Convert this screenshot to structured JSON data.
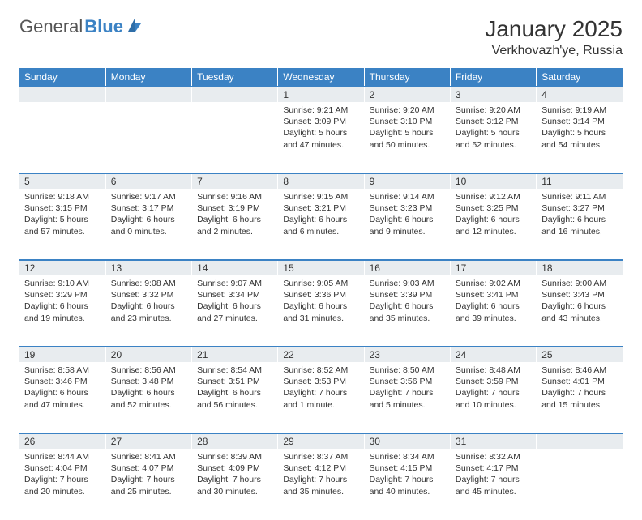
{
  "brand": {
    "part1": "General",
    "part2": "Blue"
  },
  "title": "January 2025",
  "location": "Verkhovazh'ye, Russia",
  "colors": {
    "header_bg": "#3b82c4",
    "header_fg": "#ffffff",
    "daynum_bg": "#e8ecef",
    "text": "#333333",
    "page_bg": "#ffffff"
  },
  "weekdays": [
    "Sunday",
    "Monday",
    "Tuesday",
    "Wednesday",
    "Thursday",
    "Friday",
    "Saturday"
  ],
  "weeks": [
    [
      null,
      null,
      null,
      {
        "n": "1",
        "sunrise": "Sunrise: 9:21 AM",
        "sunset": "Sunset: 3:09 PM",
        "day1": "Daylight: 5 hours",
        "day2": "and 47 minutes."
      },
      {
        "n": "2",
        "sunrise": "Sunrise: 9:20 AM",
        "sunset": "Sunset: 3:10 PM",
        "day1": "Daylight: 5 hours",
        "day2": "and 50 minutes."
      },
      {
        "n": "3",
        "sunrise": "Sunrise: 9:20 AM",
        "sunset": "Sunset: 3:12 PM",
        "day1": "Daylight: 5 hours",
        "day2": "and 52 minutes."
      },
      {
        "n": "4",
        "sunrise": "Sunrise: 9:19 AM",
        "sunset": "Sunset: 3:14 PM",
        "day1": "Daylight: 5 hours",
        "day2": "and 54 minutes."
      }
    ],
    [
      {
        "n": "5",
        "sunrise": "Sunrise: 9:18 AM",
        "sunset": "Sunset: 3:15 PM",
        "day1": "Daylight: 5 hours",
        "day2": "and 57 minutes."
      },
      {
        "n": "6",
        "sunrise": "Sunrise: 9:17 AM",
        "sunset": "Sunset: 3:17 PM",
        "day1": "Daylight: 6 hours",
        "day2": "and 0 minutes."
      },
      {
        "n": "7",
        "sunrise": "Sunrise: 9:16 AM",
        "sunset": "Sunset: 3:19 PM",
        "day1": "Daylight: 6 hours",
        "day2": "and 2 minutes."
      },
      {
        "n": "8",
        "sunrise": "Sunrise: 9:15 AM",
        "sunset": "Sunset: 3:21 PM",
        "day1": "Daylight: 6 hours",
        "day2": "and 6 minutes."
      },
      {
        "n": "9",
        "sunrise": "Sunrise: 9:14 AM",
        "sunset": "Sunset: 3:23 PM",
        "day1": "Daylight: 6 hours",
        "day2": "and 9 minutes."
      },
      {
        "n": "10",
        "sunrise": "Sunrise: 9:12 AM",
        "sunset": "Sunset: 3:25 PM",
        "day1": "Daylight: 6 hours",
        "day2": "and 12 minutes."
      },
      {
        "n": "11",
        "sunrise": "Sunrise: 9:11 AM",
        "sunset": "Sunset: 3:27 PM",
        "day1": "Daylight: 6 hours",
        "day2": "and 16 minutes."
      }
    ],
    [
      {
        "n": "12",
        "sunrise": "Sunrise: 9:10 AM",
        "sunset": "Sunset: 3:29 PM",
        "day1": "Daylight: 6 hours",
        "day2": "and 19 minutes."
      },
      {
        "n": "13",
        "sunrise": "Sunrise: 9:08 AM",
        "sunset": "Sunset: 3:32 PM",
        "day1": "Daylight: 6 hours",
        "day2": "and 23 minutes."
      },
      {
        "n": "14",
        "sunrise": "Sunrise: 9:07 AM",
        "sunset": "Sunset: 3:34 PM",
        "day1": "Daylight: 6 hours",
        "day2": "and 27 minutes."
      },
      {
        "n": "15",
        "sunrise": "Sunrise: 9:05 AM",
        "sunset": "Sunset: 3:36 PM",
        "day1": "Daylight: 6 hours",
        "day2": "and 31 minutes."
      },
      {
        "n": "16",
        "sunrise": "Sunrise: 9:03 AM",
        "sunset": "Sunset: 3:39 PM",
        "day1": "Daylight: 6 hours",
        "day2": "and 35 minutes."
      },
      {
        "n": "17",
        "sunrise": "Sunrise: 9:02 AM",
        "sunset": "Sunset: 3:41 PM",
        "day1": "Daylight: 6 hours",
        "day2": "and 39 minutes."
      },
      {
        "n": "18",
        "sunrise": "Sunrise: 9:00 AM",
        "sunset": "Sunset: 3:43 PM",
        "day1": "Daylight: 6 hours",
        "day2": "and 43 minutes."
      }
    ],
    [
      {
        "n": "19",
        "sunrise": "Sunrise: 8:58 AM",
        "sunset": "Sunset: 3:46 PM",
        "day1": "Daylight: 6 hours",
        "day2": "and 47 minutes."
      },
      {
        "n": "20",
        "sunrise": "Sunrise: 8:56 AM",
        "sunset": "Sunset: 3:48 PM",
        "day1": "Daylight: 6 hours",
        "day2": "and 52 minutes."
      },
      {
        "n": "21",
        "sunrise": "Sunrise: 8:54 AM",
        "sunset": "Sunset: 3:51 PM",
        "day1": "Daylight: 6 hours",
        "day2": "and 56 minutes."
      },
      {
        "n": "22",
        "sunrise": "Sunrise: 8:52 AM",
        "sunset": "Sunset: 3:53 PM",
        "day1": "Daylight: 7 hours",
        "day2": "and 1 minute."
      },
      {
        "n": "23",
        "sunrise": "Sunrise: 8:50 AM",
        "sunset": "Sunset: 3:56 PM",
        "day1": "Daylight: 7 hours",
        "day2": "and 5 minutes."
      },
      {
        "n": "24",
        "sunrise": "Sunrise: 8:48 AM",
        "sunset": "Sunset: 3:59 PM",
        "day1": "Daylight: 7 hours",
        "day2": "and 10 minutes."
      },
      {
        "n": "25",
        "sunrise": "Sunrise: 8:46 AM",
        "sunset": "Sunset: 4:01 PM",
        "day1": "Daylight: 7 hours",
        "day2": "and 15 minutes."
      }
    ],
    [
      {
        "n": "26",
        "sunrise": "Sunrise: 8:44 AM",
        "sunset": "Sunset: 4:04 PM",
        "day1": "Daylight: 7 hours",
        "day2": "and 20 minutes."
      },
      {
        "n": "27",
        "sunrise": "Sunrise: 8:41 AM",
        "sunset": "Sunset: 4:07 PM",
        "day1": "Daylight: 7 hours",
        "day2": "and 25 minutes."
      },
      {
        "n": "28",
        "sunrise": "Sunrise: 8:39 AM",
        "sunset": "Sunset: 4:09 PM",
        "day1": "Daylight: 7 hours",
        "day2": "and 30 minutes."
      },
      {
        "n": "29",
        "sunrise": "Sunrise: 8:37 AM",
        "sunset": "Sunset: 4:12 PM",
        "day1": "Daylight: 7 hours",
        "day2": "and 35 minutes."
      },
      {
        "n": "30",
        "sunrise": "Sunrise: 8:34 AM",
        "sunset": "Sunset: 4:15 PM",
        "day1": "Daylight: 7 hours",
        "day2": "and 40 minutes."
      },
      {
        "n": "31",
        "sunrise": "Sunrise: 8:32 AM",
        "sunset": "Sunset: 4:17 PM",
        "day1": "Daylight: 7 hours",
        "day2": "and 45 minutes."
      },
      null
    ]
  ]
}
